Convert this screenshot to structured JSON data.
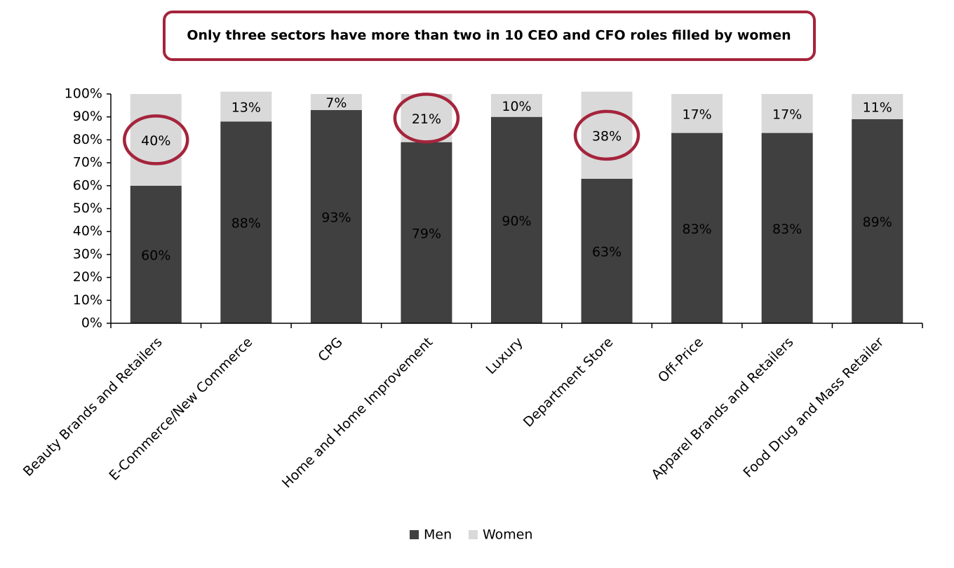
{
  "chart_data": {
    "type": "stacked_bar",
    "title": "Only three sectors have more than two in 10 CEO and CFO roles filled by women",
    "categories": [
      "Beauty Brands and Retailers",
      "E-Commerce/New Commerce",
      "CPG",
      "Home and Home Improvement",
      "Luxury",
      "Department Store",
      "Off-Price",
      "Apparel Brands and Retailers",
      "Food Drug and Mass Retailer"
    ],
    "series": [
      {
        "name": "Men",
        "color": "#404040",
        "label_color": "#ffffff",
        "values": [
          60,
          88,
          93,
          79,
          90,
          63,
          83,
          83,
          89
        ],
        "value_labels": [
          "60%",
          "88%",
          "93%",
          "79%",
          "90%",
          "63%",
          "83%",
          "83%",
          "89%"
        ]
      },
      {
        "name": "Women",
        "color": "#d9d9d9",
        "label_color": "#000000",
        "values": [
          40,
          13,
          7,
          21,
          10,
          38,
          17,
          17,
          11
        ],
        "value_labels": [
          "40%",
          "13%",
          "7%",
          "21%",
          "10%",
          "38%",
          "17%",
          "17%",
          "11%"
        ]
      }
    ],
    "highlight_categories": [
      0,
      3,
      5
    ],
    "highlight_color": "#a5243c",
    "ylim": [
      0,
      100
    ],
    "yticks": [
      {
        "value": 0,
        "label": "0%"
      },
      {
        "value": 10,
        "label": "10%"
      },
      {
        "value": 20,
        "label": "20%"
      },
      {
        "value": 30,
        "label": "30%"
      },
      {
        "value": 40,
        "label": "40%"
      },
      {
        "value": 50,
        "label": "50%"
      },
      {
        "value": 60,
        "label": "60%"
      },
      {
        "value": 70,
        "label": "70%"
      },
      {
        "value": 80,
        "label": "80%"
      },
      {
        "value": 90,
        "label": "90%"
      },
      {
        "value": 100,
        "label": "100%"
      }
    ],
    "legend": "bottom"
  }
}
